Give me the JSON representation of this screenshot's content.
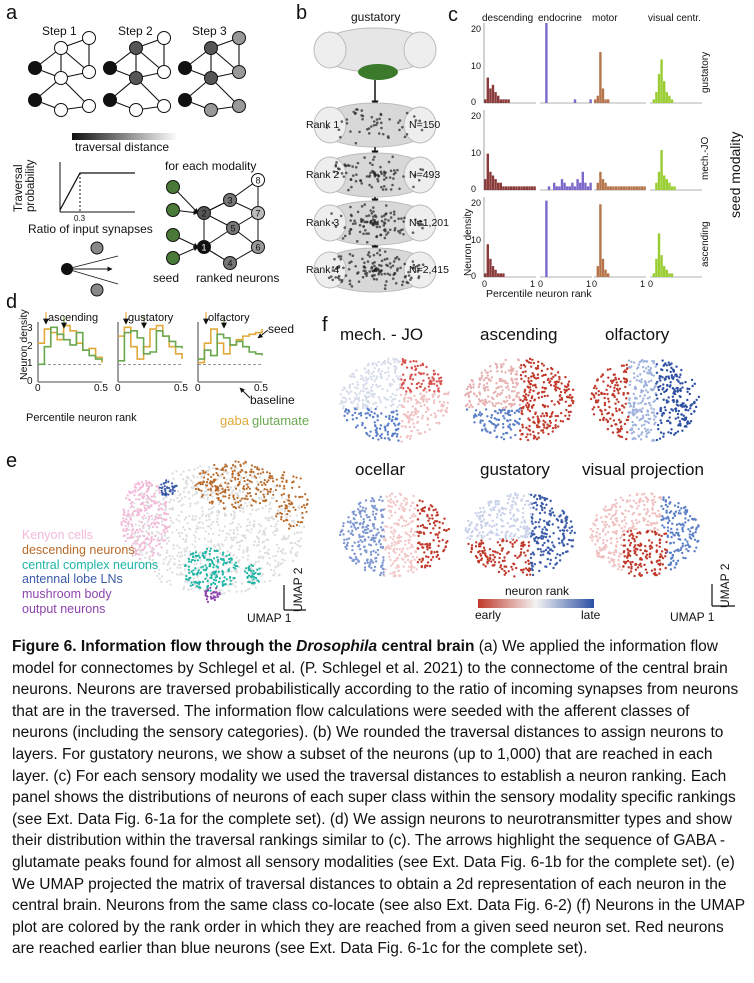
{
  "panels": {
    "a": {
      "label": "a",
      "steps": [
        "Step 1",
        "Step 2",
        "Step 3"
      ],
      "gradient_label": "traversal distance",
      "plot": {
        "ylabel": "Traversal probability",
        "xlabel": "Ratio of input synapses",
        "tick": "0.3"
      },
      "modality_title": "for each modality",
      "seed_label": "seed",
      "ranked_label": "ranked neurons",
      "rank_numbers": [
        "1",
        "2",
        "3",
        "4",
        "5",
        "6",
        "7",
        "8"
      ]
    },
    "b": {
      "label": "b",
      "title": "gustatory",
      "ranks": [
        {
          "name": "Rank 1",
          "n": "N=150"
        },
        {
          "name": "Rank 2",
          "n": "N=493"
        },
        {
          "name": "Rank 3",
          "n": "N=1,201"
        },
        {
          "name": "Rank 4",
          "n": "N=2,415"
        }
      ]
    },
    "c": {
      "label": "c",
      "columns": [
        "descending",
        "endocrine",
        "motor",
        "visual centr."
      ],
      "rows": [
        "gustatory",
        "mech.-JO",
        "ascending"
      ],
      "yticks": [
        "20",
        "10",
        "0"
      ],
      "xtick0": "0",
      "xtick1": "1",
      "ylabel": "Neuron density",
      "xlabel": "Percentile neuron rank",
      "side_label": "seed modality"
    },
    "d": {
      "label": "d",
      "panels": [
        "ascending",
        "gustatory",
        "olfactory"
      ],
      "yticks": [
        "3",
        "2",
        "1",
        "0"
      ],
      "xticks": [
        "0",
        "0.5"
      ],
      "ylabel": "Neuron density",
      "xlabel": "Percentile neuron rank",
      "seed_annot": "seed",
      "baseline_annot": "baseline",
      "legend": [
        {
          "name": "gaba",
          "color": "#e0a93a"
        },
        {
          "name": "glutamate",
          "color": "#6aa84f"
        }
      ]
    },
    "e": {
      "label": "e",
      "legend": [
        {
          "name": "Kenyon cells",
          "color": "#f2b9d8"
        },
        {
          "name": "descending neurons",
          "color": "#b86a2a"
        },
        {
          "name": "central complex neurons",
          "color": "#1fb5a6"
        },
        {
          "name": "antennal lobe LNs",
          "color": "#3b5aa8"
        },
        {
          "name": "mushroom body",
          "color": "#8e44ad"
        },
        {
          "name": "output neurons",
          "color": "#8e44ad"
        }
      ],
      "axis_x": "UMAP 1",
      "axis_y": "UMAP 2"
    },
    "f": {
      "label": "f",
      "maps": [
        "mech. - JO",
        "ascending",
        "olfactory",
        "ocellar",
        "gustatory",
        "visual projection"
      ],
      "colorbar": {
        "title": "neuron rank",
        "left": "early",
        "right": "late"
      },
      "axis_x": "UMAP 1",
      "axis_y": "UMAP 2"
    }
  },
  "caption": {
    "title_pre": "Figure 6. Information flow through the ",
    "title_italic": "Drosophila",
    "title_post": " central brain",
    "body": " (a) We applied the information flow model for connectomes by Schlegel et al. (P. Schlegel et al. 2021) to the connectome of the central brain neurons. Neurons are traversed probabilistically according to the ratio of incoming synapses from neurons that are in the traversed. The information flow calculations were seeded with the afferent classes of neurons (including the sensory categories). (b) We rounded the traversal distances to assign neurons to layers. For gustatory neurons, we show a subset of the neurons (up to 1,000) that are reached in each layer. (c) For each sensory modality we used the traversal distances to establish a neuron ranking. Each panel shows the distributions of neurons of each super class within the sensory modality specific rankings (see Ext. Data Fig. 6-1a for the complete set). (d) We assign neurons to neurotransmitter types and show their distribution within the traversal rankings similar to (c). The arrows highlight the sequence of GABA - glutamate peaks found for almost all sensory modalities (see Ext. Data Fig. 6-1b for the complete set). (e) We UMAP projected the matrix of traversal distances to obtain a 2d representation of each neuron in the central brain. Neurons from the same class co-locate (see also Ext. Data Fig. 6-2) (f) Neurons in the UMAP plot are colored by the rank order in which they are reached from a given seed neuron set. Red neurons are reached earlier than blue neurons (see Ext. Data Fig. 6-1c for the complete set)."
  },
  "colors": {
    "desc": "#8b3a3a",
    "endo": "#7b68c8",
    "motor": "#b5744a",
    "visual": "#9acd32",
    "gaba": "#e0a93a",
    "glut": "#6aa84f",
    "early": "#c0392b",
    "late": "#2c4fa3"
  },
  "chart_data": [
    {
      "type": "bar",
      "title": "c: descending / gustatory",
      "xlabel": "Percentile neuron rank",
      "ylabel": "Neuron density",
      "ylim": [
        0,
        22
      ],
      "x": [
        0.0,
        0.05,
        0.1,
        0.15,
        0.2,
        0.25,
        0.3,
        0.35,
        0.4,
        0.45,
        0.5,
        0.55,
        0.6,
        0.65,
        0.7,
        0.75,
        0.8,
        0.85,
        0.9,
        0.95
      ],
      "series": [
        {
          "name": "descending gustatory",
          "values": [
            1,
            7,
            4,
            5,
            3,
            2,
            1,
            1,
            1,
            1,
            0,
            0,
            0,
            0,
            0,
            0,
            0,
            0,
            0,
            0
          ]
        },
        {
          "name": "endocrine gustatory",
          "values": [
            0,
            0,
            22,
            0,
            0,
            0,
            0,
            0,
            0,
            0,
            0,
            0,
            0,
            1,
            0,
            0,
            0,
            0,
            0,
            1
          ]
        },
        {
          "name": "motor gustatory",
          "values": [
            1,
            2,
            14,
            4,
            1,
            1,
            0,
            0,
            0,
            0,
            0,
            0,
            0,
            0,
            0,
            0,
            0,
            0,
            0,
            0
          ]
        },
        {
          "name": "visual gustatory",
          "values": [
            0,
            1,
            3,
            8,
            12,
            6,
            3,
            2,
            1,
            0,
            0,
            0,
            0,
            0,
            0,
            0,
            0,
            0,
            0,
            0
          ]
        },
        {
          "name": "descending mech.-JO",
          "values": [
            3,
            10,
            5,
            4,
            3,
            2,
            2,
            1,
            1,
            1,
            1,
            1,
            1,
            1,
            1,
            1,
            1,
            1,
            1,
            1
          ]
        },
        {
          "name": "endocrine mech.-JO",
          "values": [
            0,
            0,
            0,
            1,
            0,
            2,
            1,
            1,
            3,
            2,
            1,
            1,
            2,
            1,
            3,
            2,
            5,
            2,
            1,
            2
          ]
        },
        {
          "name": "motor mech.-JO",
          "values": [
            0,
            2,
            5,
            3,
            2,
            1,
            1,
            1,
            1,
            1,
            1,
            1,
            1,
            1,
            1,
            1,
            1,
            1,
            1,
            1
          ]
        },
        {
          "name": "visual mech.-JO",
          "values": [
            0,
            0,
            2,
            5,
            11,
            4,
            3,
            2,
            1,
            1,
            0,
            0,
            0,
            0,
            0,
            0,
            0,
            0,
            0,
            0
          ]
        },
        {
          "name": "descending ascending",
          "values": [
            1,
            9,
            5,
            3,
            2,
            1,
            1,
            1,
            0,
            0,
            0,
            0,
            0,
            0,
            0,
            0,
            0,
            0,
            0,
            0
          ]
        },
        {
          "name": "endocrine ascending",
          "values": [
            0,
            0,
            21,
            0,
            0,
            0,
            0,
            0,
            0,
            0,
            0,
            0,
            0,
            0,
            0,
            0,
            0,
            0,
            0,
            0
          ]
        },
        {
          "name": "motor ascending",
          "values": [
            0,
            3,
            20,
            5,
            2,
            1,
            0,
            0,
            0,
            0,
            0,
            0,
            0,
            0,
            0,
            0,
            0,
            0,
            0,
            0
          ]
        },
        {
          "name": "visual ascending",
          "values": [
            0,
            1,
            5,
            12,
            6,
            3,
            2,
            1,
            1,
            0,
            0,
            0,
            0,
            0,
            0,
            0,
            0,
            0,
            0,
            0
          ]
        }
      ]
    },
    {
      "type": "line",
      "title": "d: ascending / gustatory / olfactory",
      "xlabel": "Percentile neuron rank",
      "ylabel": "Neuron density",
      "ylim": [
        0,
        3.4
      ],
      "x": [
        0.0,
        0.05,
        0.1,
        0.15,
        0.2,
        0.25,
        0.3,
        0.35,
        0.4,
        0.45,
        0.5
      ],
      "series": [
        {
          "name": "ascending gaba",
          "values": [
            2.2,
            3.0,
            2.8,
            2.4,
            3.2,
            2.9,
            2.2,
            1.8,
            1.9,
            1.4,
            1.1
          ]
        },
        {
          "name": "ascending glutamate",
          "values": [
            1.0,
            2.0,
            3.1,
            2.7,
            2.4,
            2.1,
            2.8,
            1.8,
            1.5,
            1.3,
            1.2
          ]
        },
        {
          "name": "gustatory gaba",
          "values": [
            2.6,
            3.1,
            2.0,
            1.3,
            2.0,
            3.0,
            3.2,
            2.6,
            2.0,
            1.6,
            1.3
          ]
        },
        {
          "name": "gustatory glutamate",
          "values": [
            1.2,
            2.8,
            2.9,
            2.5,
            1.6,
            1.7,
            2.9,
            2.6,
            2.3,
            2.0,
            1.9
          ]
        },
        {
          "name": "olfactory gaba",
          "values": [
            1.1,
            2.2,
            3.0,
            2.2,
            1.6,
            2.1,
            2.4,
            2.6,
            2.7,
            2.8,
            3.0
          ]
        },
        {
          "name": "olfactory glutamate",
          "values": [
            1.3,
            1.8,
            1.5,
            2.7,
            2.5,
            2.1,
            2.3,
            2.0,
            1.7,
            1.6,
            1.5
          ]
        }
      ],
      "baseline": 1
    }
  ]
}
